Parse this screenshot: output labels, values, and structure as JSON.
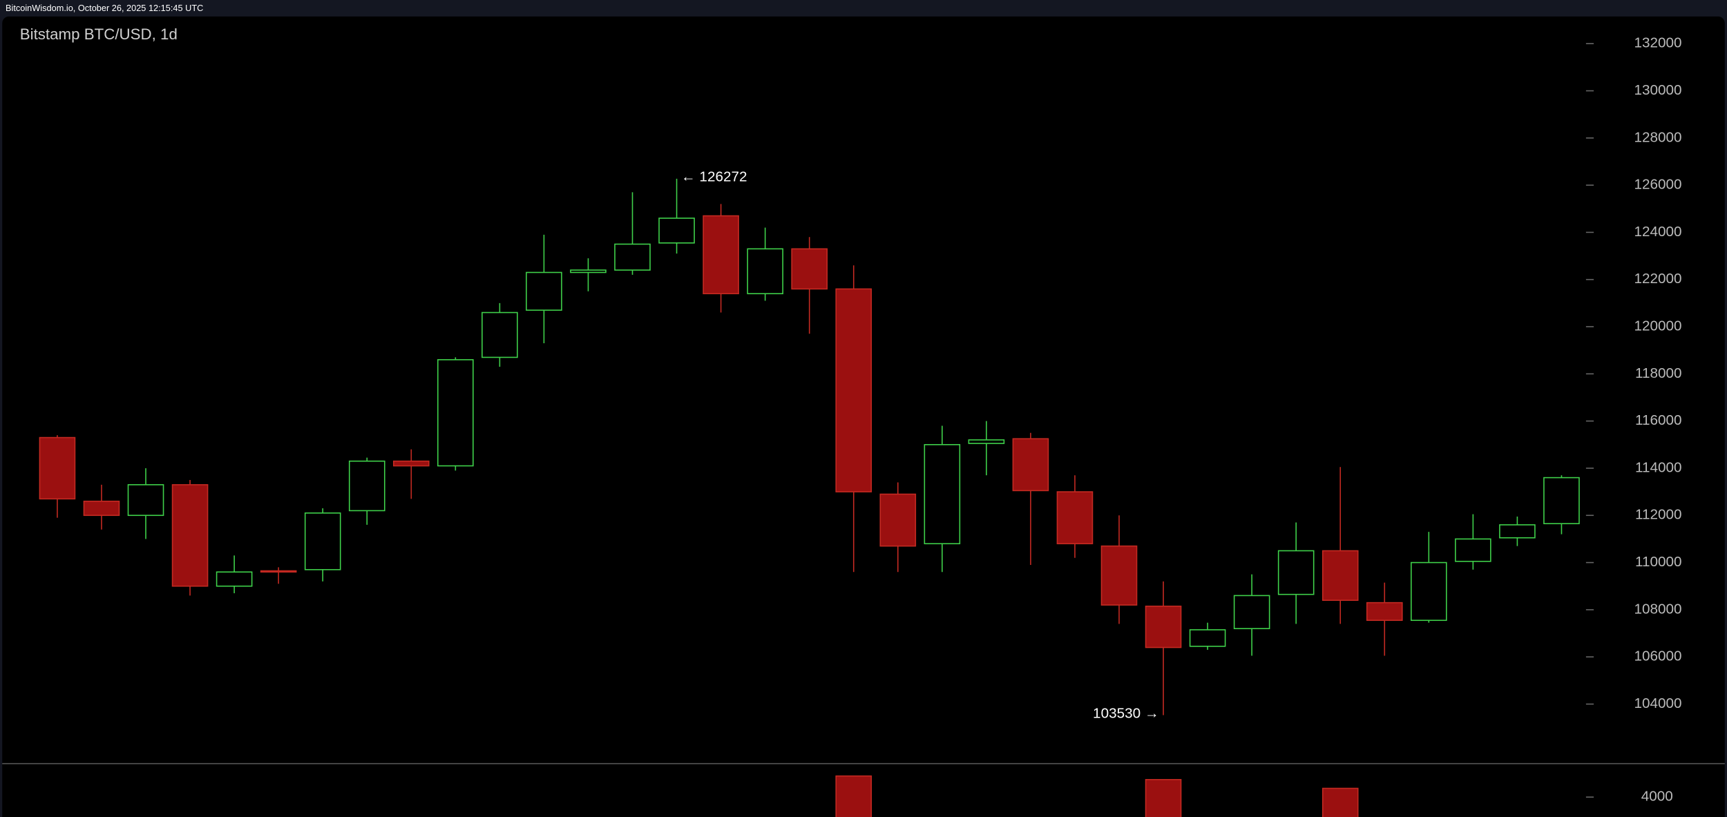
{
  "header": {
    "source": "BitcoinWisdom.io, October 26, 2025 12:15:45 UTC"
  },
  "chart_data": [
    {
      "type": "candlestick",
      "title": "Bitstamp BTC/USD, 1d",
      "up_color": "#3fd14a",
      "down_color": "#9b1010",
      "open": [
        115300,
        112600,
        112000,
        113300,
        109000,
        109650,
        109700,
        112200,
        114300,
        114100,
        118700,
        120700,
        122300,
        122400,
        123550,
        124700,
        121400,
        123300,
        121600,
        112900,
        110800,
        115050,
        115250,
        113000,
        110700,
        108150,
        106450,
        107200,
        108650,
        110500,
        108300,
        107550,
        110050,
        111050,
        111650
      ],
      "high": [
        115400,
        113300,
        114000,
        113500,
        110300,
        109800,
        112300,
        114450,
        114800,
        118700,
        121000,
        123900,
        122900,
        125700,
        126272,
        125200,
        124200,
        123800,
        122600,
        113400,
        115800,
        116000,
        115500,
        113700,
        112000,
        109200,
        107450,
        109500,
        111700,
        114050,
        109150,
        111300,
        112050,
        111950,
        113700
      ],
      "low": [
        111900,
        111400,
        111000,
        108600,
        108700,
        109100,
        109200,
        111600,
        112700,
        113900,
        118300,
        119300,
        121500,
        122200,
        123100,
        120600,
        121100,
        119700,
        109600,
        109600,
        109600,
        113700,
        109900,
        110200,
        107400,
        103530,
        106300,
        106050,
        107400,
        107400,
        106050,
        107450,
        109700,
        110700,
        111200
      ],
      "close": [
        112700,
        112000,
        113300,
        109000,
        109600,
        109600,
        112100,
        114300,
        114100,
        118600,
        120600,
        122300,
        122400,
        123500,
        124600,
        121400,
        123300,
        121600,
        113000,
        110700,
        115000,
        115200,
        113050,
        110800,
        108200,
        106400,
        107150,
        108600,
        110500,
        108400,
        107550,
        110000,
        111000,
        111600,
        113600
      ],
      "ylim": [
        101500,
        133150
      ],
      "yticks": [
        104000,
        106000,
        108000,
        110000,
        112000,
        114000,
        116000,
        118000,
        120000,
        122000,
        124000,
        126000,
        128000,
        130000,
        132000
      ],
      "annotations": [
        "← 126272",
        "103530 →"
      ]
    },
    {
      "type": "volume",
      "color": "#9b1010",
      "values": [
        null,
        null,
        null,
        null,
        null,
        null,
        null,
        null,
        null,
        null,
        null,
        null,
        null,
        null,
        null,
        null,
        null,
        null,
        4530,
        null,
        null,
        null,
        null,
        null,
        null,
        4440,
        null,
        null,
        null,
        4220,
        null,
        null,
        null,
        null,
        null
      ],
      "ylim": [
        3500,
        4800
      ],
      "yticks": [
        4000
      ]
    }
  ]
}
